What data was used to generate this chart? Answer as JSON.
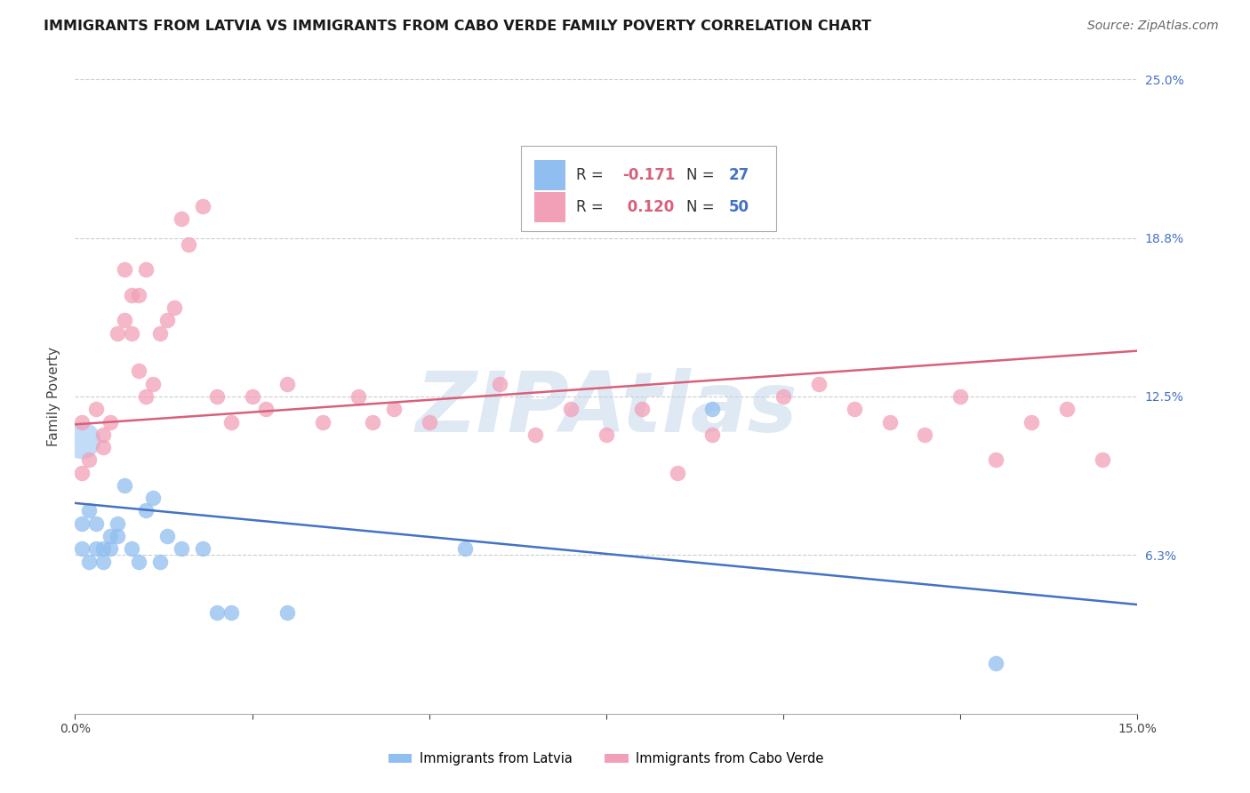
{
  "title": "IMMIGRANTS FROM LATVIA VS IMMIGRANTS FROM CABO VERDE FAMILY POVERTY CORRELATION CHART",
  "source": "Source: ZipAtlas.com",
  "ylabel": "Family Poverty",
  "xlim": [
    0.0,
    0.15
  ],
  "ylim": [
    0.0,
    0.25
  ],
  "yticks": [
    0.0,
    0.0625,
    0.125,
    0.1875,
    0.25
  ],
  "ytick_labels": [
    "",
    "6.3%",
    "12.5%",
    "18.8%",
    "25.0%"
  ],
  "xticks": [
    0.0,
    0.025,
    0.05,
    0.075,
    0.1,
    0.125,
    0.15
  ],
  "xtick_labels_show": [
    0.0,
    0.05,
    0.1,
    0.15
  ],
  "xtick_label_map": {
    "0.0": "0.0%",
    "0.05": "",
    "0.1": "",
    "0.15": "15.0%"
  },
  "watermark": "ZIPAtlas",
  "legend_r1": "R = -0.171",
  "legend_n1": "N = 27",
  "legend_r2": "R =  0.120",
  "legend_n2": "N = 50",
  "legend_label1": "Immigrants from Latvia",
  "legend_label2": "Immigrants from Cabo Verde",
  "color_latvia": "#90BEF0",
  "color_caboverde": "#F2A0B8",
  "color_line_latvia": "#4472C4",
  "color_line_caboverde": "#D9607A",
  "color_axis_right": "#4472C4",
  "background_color": "#FFFFFF",
  "latvia_x": [
    0.001,
    0.001,
    0.002,
    0.002,
    0.003,
    0.003,
    0.004,
    0.004,
    0.005,
    0.005,
    0.006,
    0.006,
    0.007,
    0.008,
    0.009,
    0.01,
    0.011,
    0.012,
    0.013,
    0.015,
    0.018,
    0.02,
    0.022,
    0.03,
    0.055,
    0.09,
    0.13
  ],
  "latvia_y": [
    0.075,
    0.065,
    0.08,
    0.06,
    0.075,
    0.065,
    0.06,
    0.065,
    0.07,
    0.065,
    0.075,
    0.07,
    0.09,
    0.065,
    0.06,
    0.08,
    0.085,
    0.06,
    0.07,
    0.065,
    0.065,
    0.04,
    0.04,
    0.04,
    0.065,
    0.12,
    0.02
  ],
  "latvia_big": [
    [
      0.001,
      0.108
    ]
  ],
  "caboverde_x": [
    0.001,
    0.001,
    0.002,
    0.003,
    0.004,
    0.004,
    0.005,
    0.006,
    0.007,
    0.007,
    0.008,
    0.008,
    0.009,
    0.009,
    0.01,
    0.01,
    0.011,
    0.012,
    0.013,
    0.014,
    0.015,
    0.016,
    0.018,
    0.02,
    0.022,
    0.025,
    0.027,
    0.03,
    0.035,
    0.04,
    0.042,
    0.045,
    0.05,
    0.06,
    0.065,
    0.07,
    0.075,
    0.08,
    0.085,
    0.09,
    0.1,
    0.105,
    0.11,
    0.115,
    0.12,
    0.125,
    0.13,
    0.135,
    0.14,
    0.145
  ],
  "caboverde_y": [
    0.115,
    0.095,
    0.1,
    0.12,
    0.11,
    0.105,
    0.115,
    0.15,
    0.155,
    0.175,
    0.15,
    0.165,
    0.135,
    0.165,
    0.125,
    0.175,
    0.13,
    0.15,
    0.155,
    0.16,
    0.195,
    0.185,
    0.2,
    0.125,
    0.115,
    0.125,
    0.12,
    0.13,
    0.115,
    0.125,
    0.115,
    0.12,
    0.115,
    0.13,
    0.11,
    0.12,
    0.11,
    0.12,
    0.095,
    0.11,
    0.125,
    0.13,
    0.12,
    0.115,
    0.11,
    0.125,
    0.1,
    0.115,
    0.12,
    0.1
  ],
  "title_fontsize": 11.5,
  "axis_label_fontsize": 11,
  "tick_fontsize": 10,
  "legend_fontsize": 12,
  "source_fontsize": 10
}
